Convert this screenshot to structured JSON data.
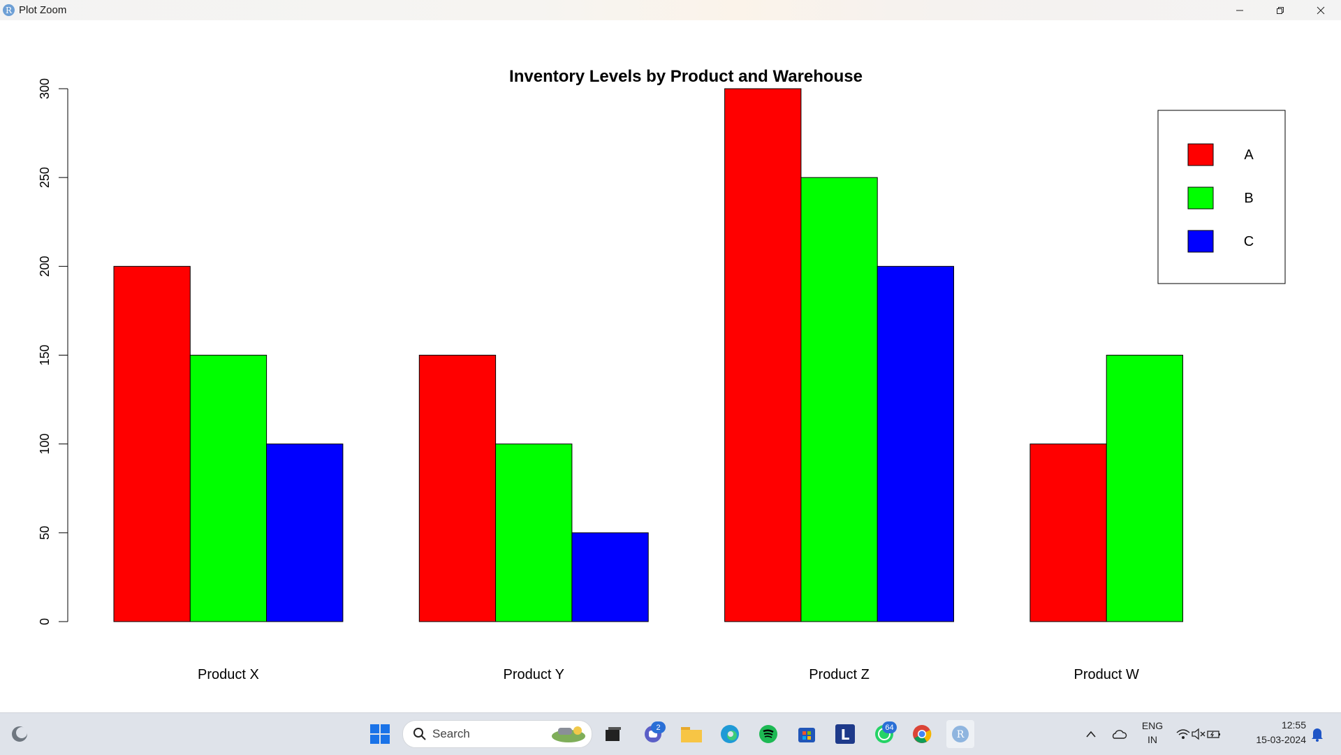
{
  "window": {
    "title": "Plot Zoom",
    "app_icon_letter": "R"
  },
  "chart_data": {
    "type": "bar",
    "title": "Inventory Levels by Product and Warehouse",
    "xlabel": "",
    "ylabel": "",
    "categories": [
      "Product X",
      "Product Y",
      "Product Z",
      "Product W"
    ],
    "series": [
      {
        "name": "A",
        "color": "#ff0000",
        "values": [
          200,
          150,
          300,
          100
        ]
      },
      {
        "name": "B",
        "color": "#00ff00",
        "values": [
          150,
          100,
          250,
          150
        ]
      },
      {
        "name": "C",
        "color": "#0000ff",
        "values": [
          100,
          50,
          200,
          0
        ]
      }
    ],
    "ylim": [
      0,
      300
    ],
    "yticks": [
      0,
      50,
      100,
      150,
      200,
      250,
      300
    ],
    "grid": false,
    "legend_position": "top-right"
  },
  "taskbar": {
    "search_placeholder": "Search",
    "teams_badge": "2",
    "whatsapp_badge": "64",
    "language": "ENG",
    "region": "IN",
    "time": "12:55",
    "date": "15-03-2024",
    "r_icon_letter": "R",
    "l_icon_letter": "L"
  }
}
